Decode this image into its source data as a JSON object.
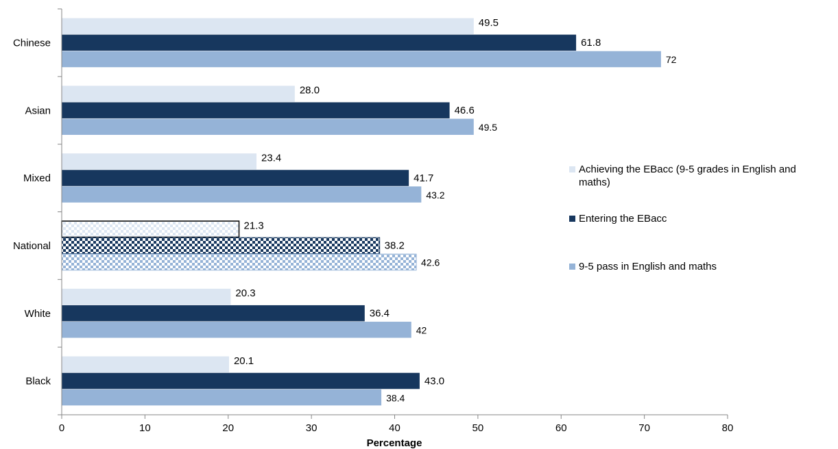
{
  "chart_data": {
    "type": "bar",
    "orientation": "horizontal",
    "categories": [
      "Chinese",
      "Asian",
      "Mixed",
      "National",
      "White",
      "Black"
    ],
    "series": [
      {
        "name": "Achieving the EBacc (9-5 grades in English and maths)",
        "color": "#dce6f2",
        "values": [
          49.5,
          28.0,
          23.4,
          21.3,
          20.3,
          20.1
        ],
        "labels": [
          "49.5",
          "28.0",
          "23.4",
          "21.3",
          "20.3",
          "20.1"
        ]
      },
      {
        "name": "Entering the EBacc",
        "color": "#17375e",
        "values": [
          61.8,
          46.6,
          41.7,
          38.2,
          36.4,
          43.0
        ],
        "labels": [
          "61.8",
          "46.6",
          "41.7",
          "38.2",
          "36.4",
          "43.0"
        ]
      },
      {
        "name": "9-5 pass in English and maths",
        "color": "#95b3d7",
        "values": [
          72,
          49.5,
          43.2,
          42.6,
          42,
          38.4
        ],
        "labels": [
          "72",
          "49.5",
          "43.2",
          "42.6",
          "42",
          "38.4"
        ]
      }
    ],
    "highlighted_category": "National",
    "xlim": [
      0,
      80
    ],
    "xticks": [
      0,
      10,
      20,
      30,
      40,
      50,
      60,
      70,
      80
    ],
    "xlabel": "Percentage",
    "ylabel": "",
    "grid": false,
    "legend_position": "right"
  }
}
